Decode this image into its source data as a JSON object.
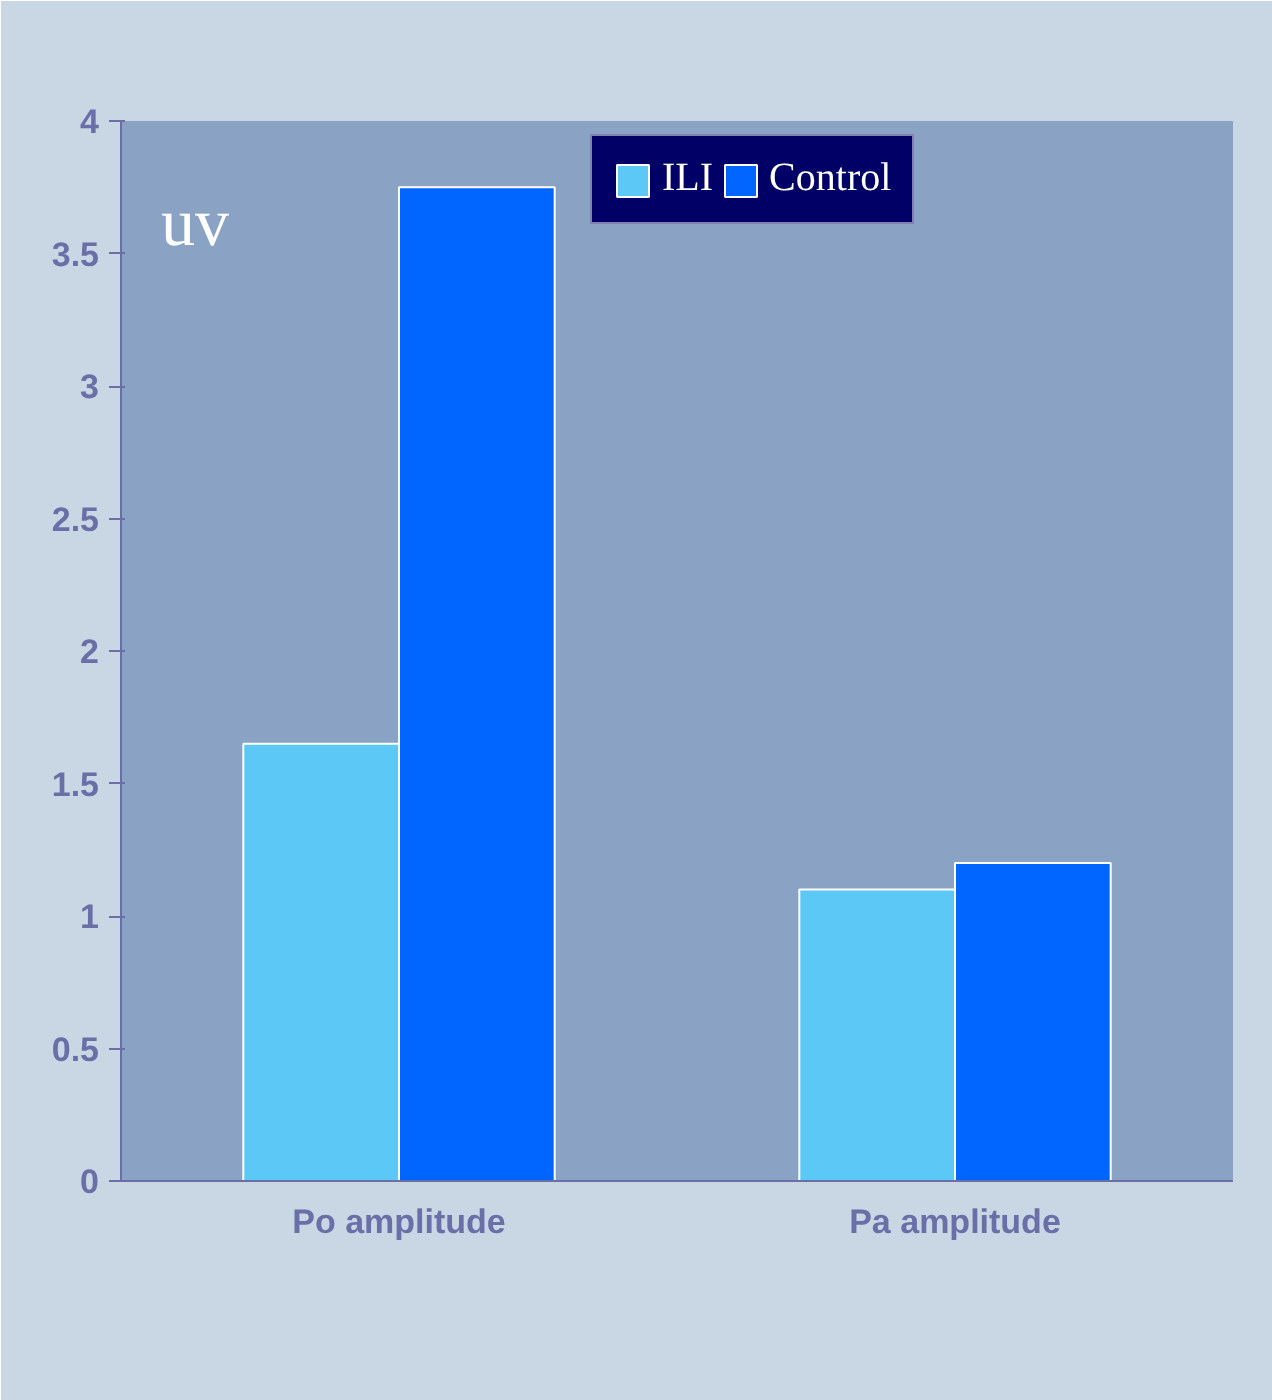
{
  "chart_data": {
    "type": "bar",
    "ylabel": "uv",
    "categories": [
      "Po amplitude",
      "Pa amplitude"
    ],
    "series": [
      {
        "name": "ILI",
        "color": "#5bc8f5",
        "values": [
          1.65,
          1.1
        ]
      },
      {
        "name": "Control",
        "color": "#0066ff",
        "values": [
          3.75,
          1.2
        ]
      }
    ],
    "ylim": [
      0,
      4
    ],
    "yticks": [
      0,
      0.5,
      1,
      1.5,
      2,
      2.5,
      3,
      3.5,
      4
    ],
    "grid": false,
    "legend": "top"
  }
}
